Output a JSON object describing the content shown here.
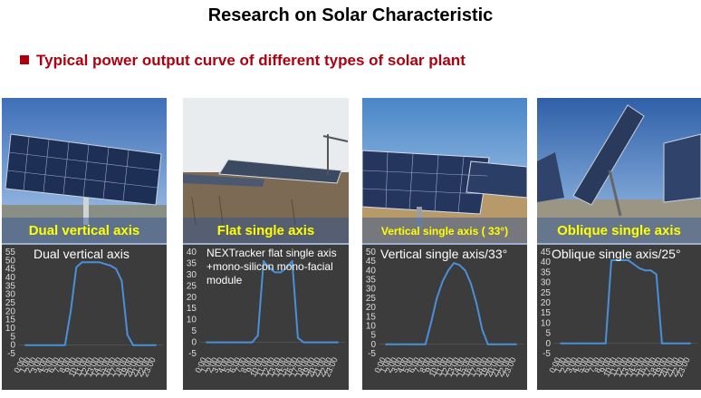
{
  "title": "Research on Solar Characteristic",
  "subtitle": "Typical power output curve of different types of solar plant",
  "panels": [
    {
      "caption": "Dual vertical axis",
      "chart_label": "Dual vertical axis"
    },
    {
      "caption": "Flat single axis",
      "chart_label_lines": [
        "NEXTracker flat single axis",
        "+mono-silicon mono-facial",
        "module"
      ]
    },
    {
      "caption": "Vertical single axis ( 33°)",
      "chart_label": "Vertical single axis/33°"
    },
    {
      "caption": "Oblique single axis",
      "chart_label": "Oblique single axis/25°"
    }
  ],
  "colors": {
    "title": "#000000",
    "subtitle": "#b0000f",
    "caption": "#ffff00",
    "chart_bg": "#3c3c3c",
    "line": "#4a90d9",
    "axis_text": "#dddddd"
  },
  "chart_data": [
    {
      "type": "line",
      "title": "Dual vertical axis",
      "x": [
        "0:00",
        "1:00",
        "2:00",
        "3:00",
        "4:00",
        "5:00",
        "6:00",
        "7:00",
        "8:00",
        "9:00",
        "10:00",
        "11:00",
        "12:00",
        "13:00",
        "14:00",
        "15:00",
        "16:00",
        "17:00",
        "18:00",
        "19:00",
        "20:00",
        "21:00",
        "22:00",
        "23:00"
      ],
      "x_tick_labels": [
        "0:00",
        "1:00",
        "2:00",
        "3:00",
        "4:00",
        "5:00",
        "6:00",
        "7:00",
        "8:00",
        "9:00",
        "10:00",
        "11:00",
        "12:00",
        "13:00",
        "14:00",
        "15:00",
        "16:00",
        "17:00",
        "18:00",
        "19:00",
        "20:00",
        "21:00",
        "22:00",
        "23:00"
      ],
      "y_ticks": [
        -5,
        0,
        5,
        10,
        15,
        20,
        25,
        30,
        35,
        40,
        45,
        50,
        55
      ],
      "ylim": [
        -5,
        55
      ],
      "series": [
        {
          "values": [
            0,
            0,
            0,
            0,
            0,
            0,
            0,
            0,
            20,
            46,
            49,
            49,
            49,
            49,
            48,
            47,
            45,
            38,
            6,
            0,
            0,
            0,
            0,
            0
          ]
        }
      ]
    },
    {
      "type": "line",
      "title": "NEXTracker flat single axis +mono-silicon mono-facial module",
      "x": [
        "0:00",
        "1:00",
        "2:00",
        "3:00",
        "4:00",
        "5:00",
        "6:00",
        "7:00",
        "8:00",
        "9:00",
        "10:00",
        "11:00",
        "12:00",
        "13:00",
        "14:00",
        "15:00",
        "16:00",
        "17:00",
        "18:00",
        "19:00",
        "20:00",
        "21:00",
        "22:00",
        "23:00"
      ],
      "x_tick_labels": [
        "0:00",
        "1:00",
        "2:00",
        "3:00",
        "4:00",
        "5:00",
        "6:00",
        "7:00",
        "8:00",
        "9:00",
        "10:00",
        "11:00",
        "12:00",
        "13:00",
        "14:00",
        "15:00",
        "16:00",
        "17:00",
        "18:00",
        "19:00",
        "20:00",
        "21:00",
        "22:00",
        "23:00"
      ],
      "y_ticks": [
        -5,
        0,
        5,
        10,
        15,
        20,
        25,
        30,
        35,
        40
      ],
      "ylim": [
        -5,
        40
      ],
      "series": [
        {
          "values": [
            0,
            0,
            0,
            0,
            0,
            0,
            0,
            0,
            0,
            3,
            36,
            33,
            31,
            31,
            33,
            36,
            2,
            0,
            0,
            0,
            0,
            0,
            0,
            0
          ]
        }
      ]
    },
    {
      "type": "line",
      "title": "Vertical single axis/33°",
      "x": [
        "0:00",
        "1:00",
        "2:00",
        "3:00",
        "4:00",
        "5:00",
        "6:00",
        "7:00",
        "8:00",
        "9:00",
        "10:00",
        "11:00",
        "12:00",
        "13:00",
        "14:00",
        "15:00",
        "16:00",
        "17:00",
        "18:00",
        "19:00",
        "20:00",
        "21:00",
        "22:00",
        "23:00"
      ],
      "x_tick_labels": [
        "0:00",
        "1:00",
        "2:00",
        "3:00",
        "4:00",
        "5:00",
        "6:00",
        "7:00",
        "8:00",
        "9:00",
        "10:00",
        "11:00",
        "12:00",
        "13:00",
        "14:00",
        "15:00",
        "16:00",
        "17:00",
        "18:00",
        "19:00",
        "20:00",
        "21:00",
        "22:00",
        "23:00"
      ],
      "y_ticks": [
        -5,
        0,
        5,
        10,
        15,
        20,
        25,
        30,
        35,
        40,
        45,
        50
      ],
      "ylim": [
        -5,
        50
      ],
      "series": [
        {
          "values": [
            0,
            0,
            0,
            0,
            0,
            0,
            0,
            0,
            12,
            25,
            34,
            40,
            44,
            43,
            40,
            33,
            22,
            8,
            0,
            0,
            0,
            0,
            0,
            0
          ]
        }
      ]
    },
    {
      "type": "line",
      "title": "Oblique single axis/25°",
      "x": [
        "0:00",
        "1:00",
        "2:00",
        "3:00",
        "4:00",
        "5:00",
        "6:00",
        "7:00",
        "8:00",
        "9:00",
        "10:00",
        "11:00",
        "12:00",
        "13:00",
        "14:00",
        "15:00",
        "16:00",
        "17:00",
        "18:00",
        "19:00",
        "20:00",
        "21:00",
        "22:00",
        "23:00"
      ],
      "x_tick_labels": [
        "0:00",
        "1:00",
        "2:00",
        "3:00",
        "4:00",
        "5:00",
        "6:00",
        "7:00",
        "8:00",
        "9:00",
        "10:00",
        "11:00",
        "12:00",
        "13:00",
        "14:00",
        "15:00",
        "16:00",
        "17:00",
        "18:00",
        "19:00",
        "20:00",
        "21:00",
        "22:00",
        "23:00"
      ],
      "y_ticks": [
        -5,
        0,
        5,
        10,
        15,
        20,
        25,
        30,
        35,
        40,
        45
      ],
      "ylim": [
        -5,
        45
      ],
      "series": [
        {
          "values": [
            0,
            0,
            0,
            0,
            0,
            0,
            0,
            0,
            0,
            41,
            41,
            41,
            41,
            39,
            37,
            36,
            36,
            34,
            0,
            0,
            0,
            0,
            0,
            0
          ]
        }
      ]
    }
  ]
}
